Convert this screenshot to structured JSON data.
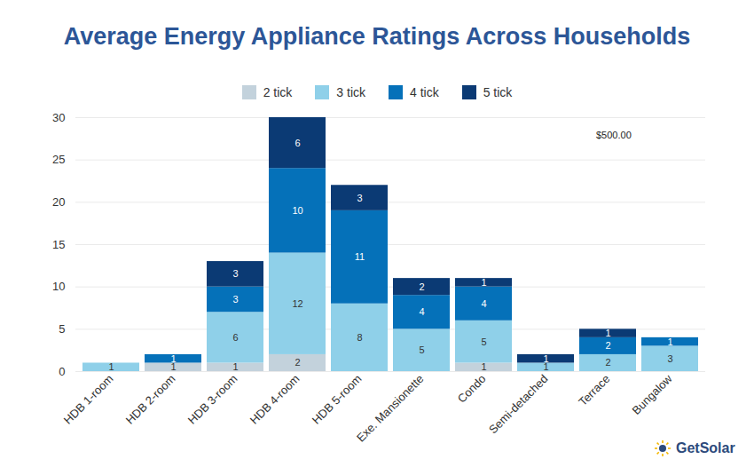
{
  "chart_data": {
    "type": "bar",
    "title": "Average Energy Appliance Ratings Across Households",
    "annotation": "$500.00",
    "logo": "GetSolar",
    "categories": [
      "HDB 1-room",
      "HDB 2-room",
      "HDB 3-room",
      "HDB 4-room",
      "HDB 5-room",
      "Exe. Mansionette",
      "Condo",
      "Semi-detached",
      "Terrace",
      "Bungalow"
    ],
    "series": [
      {
        "name": "2 tick",
        "color": "#c3d2dc",
        "values": [
          null,
          1,
          1,
          2,
          null,
          null,
          1,
          null,
          null,
          null
        ]
      },
      {
        "name": "3 tick",
        "color": "#8fd0e9",
        "values": [
          1,
          null,
          6,
          12,
          8,
          5,
          5,
          1,
          2,
          3
        ]
      },
      {
        "name": "4 tick",
        "color": "#0571b9",
        "values": [
          null,
          1,
          3,
          10,
          11,
          4,
          4,
          null,
          2,
          1
        ]
      },
      {
        "name": "5 tick",
        "color": "#0b3a74",
        "values": [
          null,
          null,
          3,
          6,
          3,
          2,
          1,
          1,
          1,
          null
        ]
      }
    ],
    "ylim": [
      0,
      30
    ],
    "yticks": [
      0,
      5,
      10,
      15,
      20,
      25,
      30
    ],
    "grid": true,
    "stacked": true,
    "legend": "top",
    "data_labels": true
  }
}
